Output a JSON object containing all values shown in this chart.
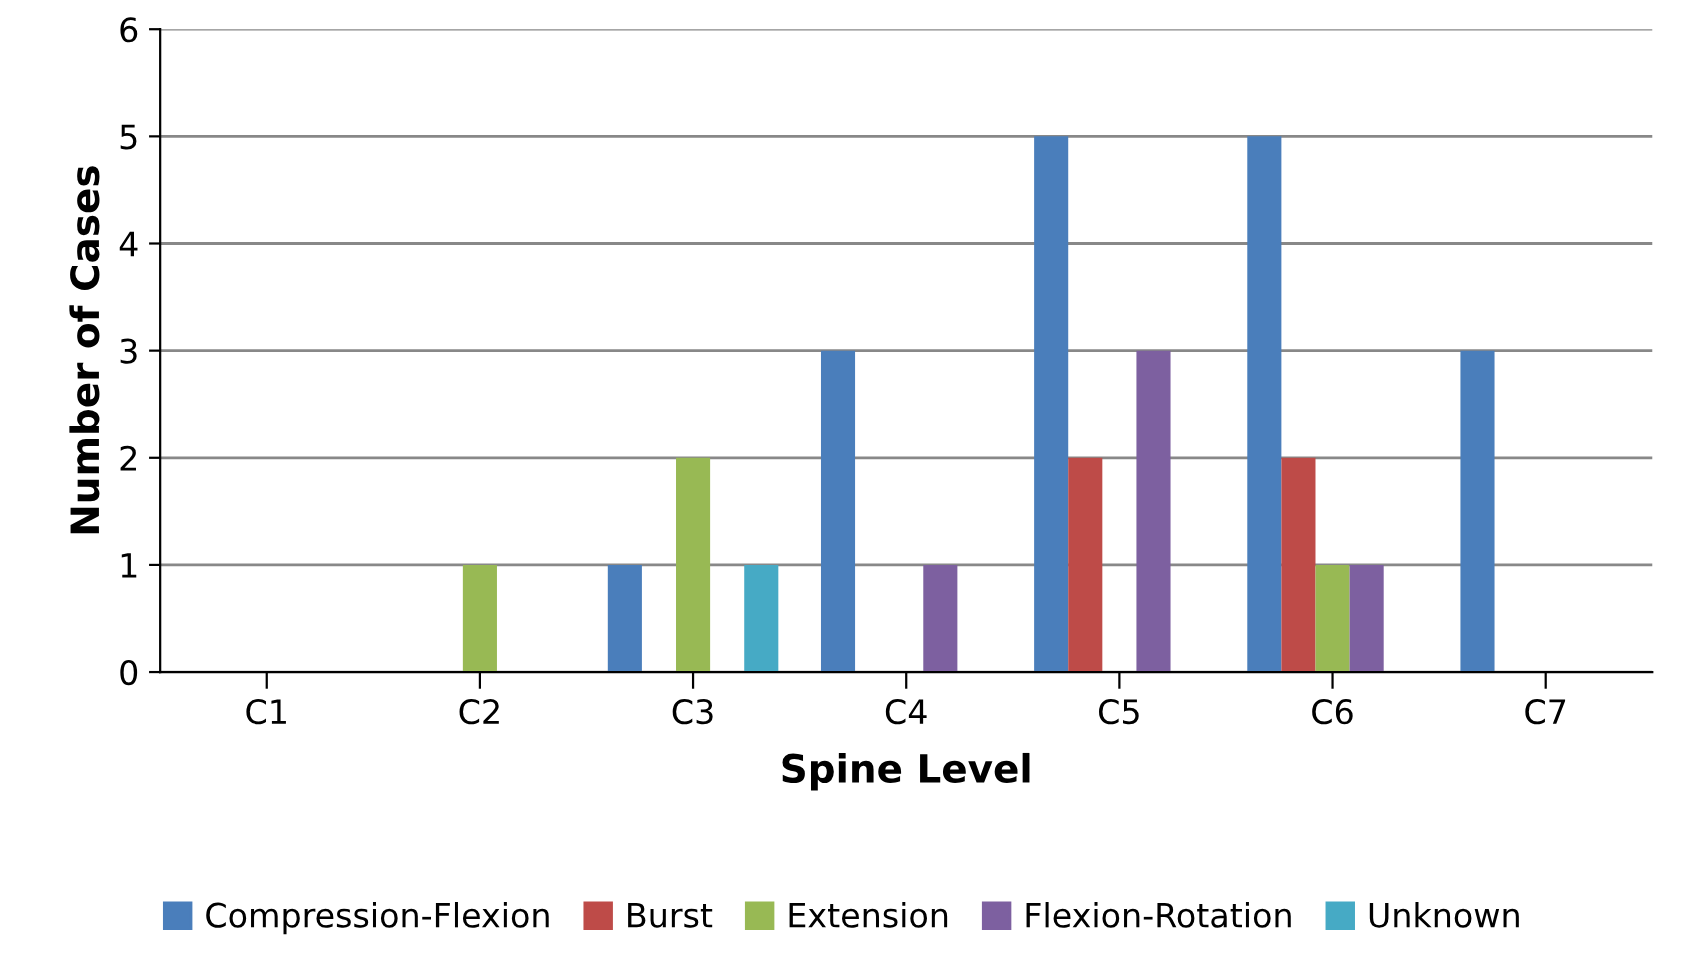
{
  "chart_data": {
    "type": "bar",
    "xlabel": "Spine Level",
    "ylabel": "Number of Cases",
    "categories": [
      "C1",
      "C2",
      "C3",
      "C4",
      "C5",
      "C6",
      "C7"
    ],
    "series": [
      {
        "name": "Compression-Flexion",
        "color": "#4a7ebb",
        "values": [
          0,
          0,
          1,
          3,
          5,
          5,
          3
        ]
      },
      {
        "name": "Burst",
        "color": "#be4b48",
        "values": [
          0,
          0,
          0,
          0,
          2,
          2,
          0
        ]
      },
      {
        "name": "Extension",
        "color": "#98b954",
        "values": [
          0,
          1,
          2,
          0,
          0,
          1,
          0
        ]
      },
      {
        "name": "Flexion-Rotation",
        "color": "#7d60a0",
        "values": [
          0,
          0,
          0,
          1,
          3,
          1,
          0
        ]
      },
      {
        "name": "Unknown",
        "color": "#46aac5",
        "values": [
          0,
          0,
          1,
          0,
          0,
          0,
          0
        ]
      }
    ],
    "ylim": [
      0,
      6
    ],
    "yticks": [
      0,
      1,
      2,
      3,
      4,
      5,
      6
    ],
    "grid": "y",
    "legend": "bottom"
  }
}
